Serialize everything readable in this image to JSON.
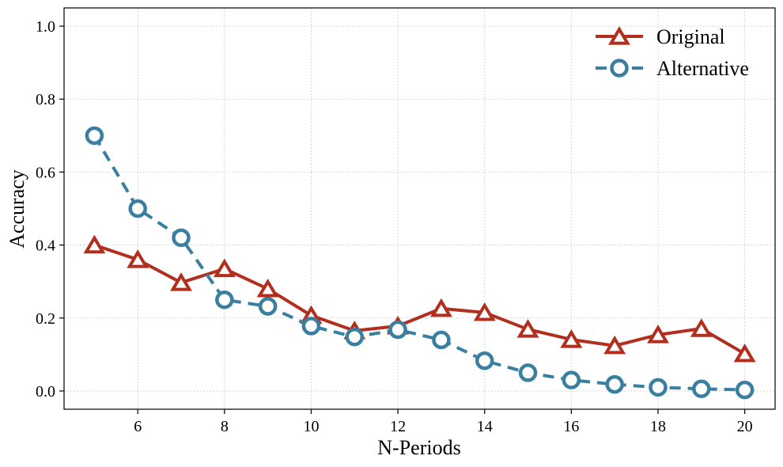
{
  "chart_data": {
    "type": "line",
    "title": "",
    "xlabel": "N-Periods",
    "ylabel": "Accuracy",
    "xlim": [
      4.3,
      20.7
    ],
    "ylim": [
      -0.05,
      1.05
    ],
    "xticks": [
      6,
      8,
      10,
      12,
      14,
      16,
      18,
      20
    ],
    "xtick_labels": [
      "6",
      "8",
      "10",
      "12",
      "14",
      "16",
      "18",
      "20"
    ],
    "yticks": [
      0.0,
      0.2,
      0.4,
      0.6,
      0.8,
      1.0
    ],
    "ytick_labels": [
      "0.0",
      "0.2",
      "0.4",
      "0.6",
      "0.8",
      "1.0"
    ],
    "grid": true,
    "legend_position": "top-right",
    "x": [
      5,
      6,
      7,
      8,
      9,
      10,
      11,
      12,
      13,
      14,
      15,
      16,
      17,
      18,
      19,
      20
    ],
    "series": [
      {
        "name": "Original",
        "color": "#b22e1f",
        "marker": "triangle",
        "linestyle": "solid",
        "values": [
          0.4,
          0.36,
          0.297,
          0.335,
          0.28,
          0.207,
          0.165,
          0.178,
          0.226,
          0.215,
          0.169,
          0.141,
          0.124,
          0.154,
          0.171,
          0.102
        ]
      },
      {
        "name": "Alternative",
        "color": "#3a7ea0",
        "marker": "circle",
        "linestyle": "dashed",
        "values": [
          0.7,
          0.5,
          0.42,
          0.25,
          0.232,
          0.178,
          0.148,
          0.168,
          0.14,
          0.083,
          0.05,
          0.03,
          0.018,
          0.01,
          0.006,
          0.003
        ]
      }
    ]
  }
}
